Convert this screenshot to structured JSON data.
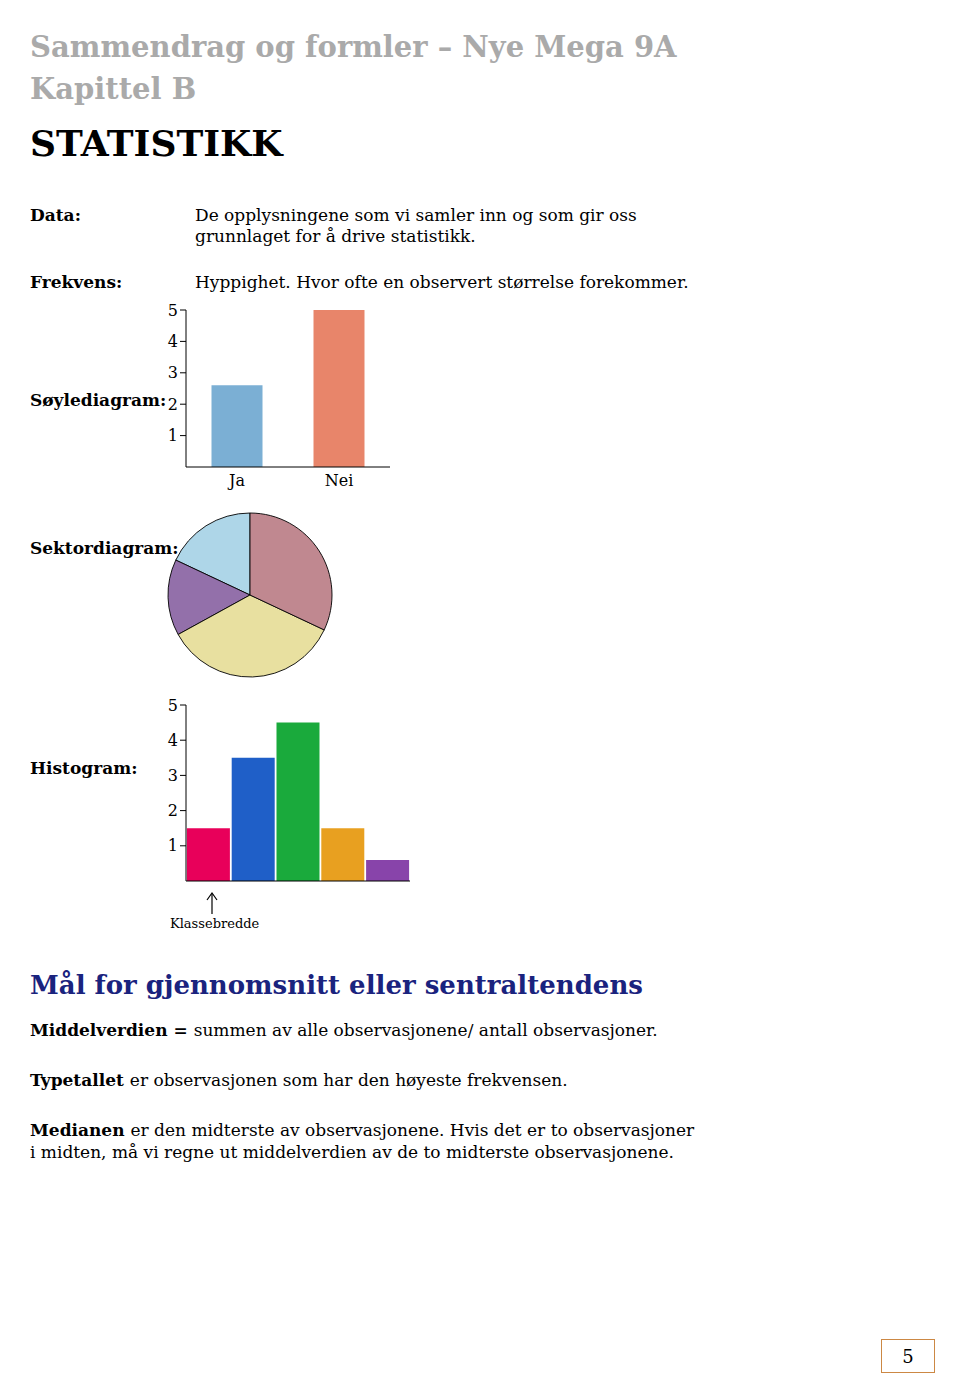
{
  "title": [
    "Sammendrag og formler – Nye Mega 9A",
    "Kapittel B"
  ],
  "title_color": "#aaaaaa",
  "subtitle": "STATISTIKK",
  "annotations": [
    {
      "term": "Data:",
      "text": [
        "De opplysningene som vi samler inn og som gir oss",
        "grunnlaget for å drive statistikk."
      ]
    },
    {
      "term": "Frekvens:",
      "text": [
        "Hyppighet. Hvor ofte en observert størrelse forekommer."
      ]
    }
  ],
  "chart_data": [
    {
      "type": "bar",
      "title": "Søylediagram:",
      "categories": [
        "Ja",
        "Nei"
      ],
      "values": [
        2.6,
        5.0
      ],
      "colors": [
        "#7bafd4",
        "#e8856a"
      ],
      "ylim": [
        0,
        5
      ],
      "yticks": [
        1,
        2,
        3,
        4,
        5
      ],
      "grid": false
    },
    {
      "type": "pie",
      "title": "Sektordiagram:",
      "values": [
        0.18,
        0.15,
        0.35,
        0.32
      ],
      "colors": [
        "#aed6e8",
        "#9370aa",
        "#e8e0a0",
        "#c08890"
      ]
    },
    {
      "type": "histogram",
      "title": "Histogram:",
      "values": [
        1.5,
        3.5,
        4.5,
        1.5,
        0.6
      ],
      "colors": [
        "#e8005a",
        "#1f5fc8",
        "#1aaa3c",
        "#e8a020",
        "#8844aa"
      ],
      "ylim": [
        0,
        5
      ],
      "yticks": [
        1,
        2,
        3,
        4,
        5
      ],
      "grid": false,
      "tick_labels": "y",
      "annotations": [
        "Klassebredde"
      ]
    }
  ],
  "notes": {
    "title": "Mål for gjennomsnitt eller sentraltendens",
    "color": "#1a237e",
    "items": [
      {
        "term": "Middelverdien =",
        "text": [
          "summen av alle observasjonene/ antall observasjoner."
        ]
      },
      {
        "term": "Typetallet",
        "text": [
          "er observasjonen som har den høyeste frekvensen."
        ]
      },
      {
        "term": "Medianen",
        "text": [
          "er den midterste av observasjonene. Hvis det er to observasjoner",
          "i midten, må vi regne ut middelverdien av de to midterste observasjonene."
        ]
      }
    ]
  },
  "page_number": "5",
  "page_number_color": "#cc8844"
}
